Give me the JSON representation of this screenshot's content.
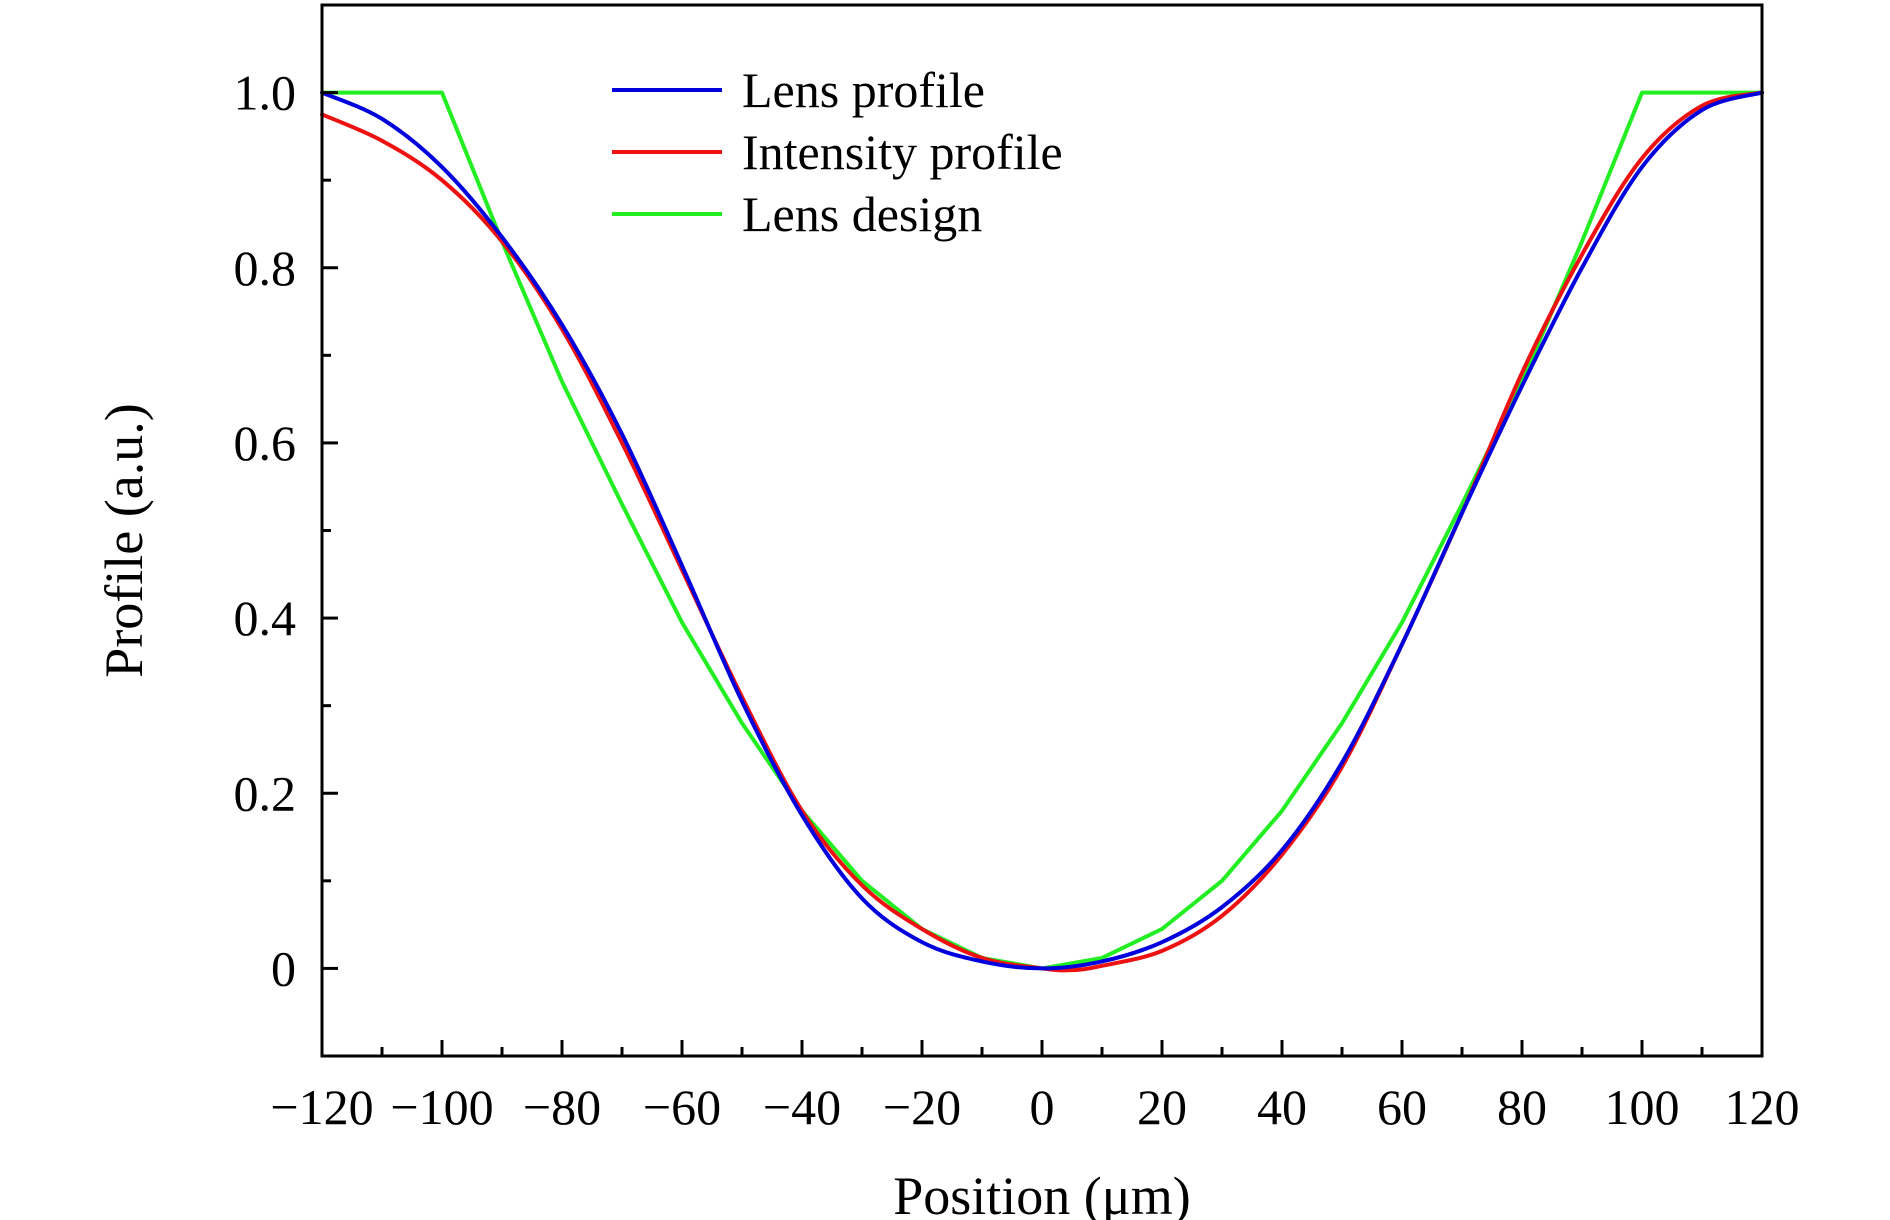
{
  "chart_data": {
    "type": "line",
    "title": "",
    "xlabel": "Position (μm)",
    "ylabel": "Profile (a.u.)",
    "xlim": [
      -120,
      120
    ],
    "ylim": [
      -0.1,
      1.1
    ],
    "x_ticks": [
      -120,
      -100,
      -80,
      -60,
      -40,
      -20,
      0,
      20,
      40,
      60,
      80,
      100,
      120
    ],
    "x_tick_labels": [
      "−120",
      "−100",
      "−80",
      "−60",
      "−40",
      "−20",
      "0",
      "20",
      "40",
      "60",
      "80",
      "100",
      "120"
    ],
    "y_ticks": [
      0,
      0.2,
      0.4,
      0.6,
      0.8,
      1.0
    ],
    "y_tick_labels": [
      "0",
      "0.2",
      "0.4",
      "0.6",
      "0.8",
      "1.0"
    ],
    "grid": false,
    "legend_position": "top-center",
    "series": [
      {
        "name": "Lens profile",
        "color": "#0000dd",
        "x": [
          -120,
          -110,
          -100,
          -90,
          -80,
          -70,
          -60,
          -50,
          -40,
          -30,
          -20,
          -10,
          0,
          10,
          20,
          30,
          40,
          50,
          60,
          70,
          80,
          90,
          100,
          110,
          120
        ],
        "y": [
          1.0,
          0.97,
          0.915,
          0.835,
          0.735,
          0.61,
          0.46,
          0.305,
          0.175,
          0.08,
          0.03,
          0.008,
          0.0,
          0.008,
          0.03,
          0.07,
          0.135,
          0.235,
          0.37,
          0.52,
          0.665,
          0.8,
          0.915,
          0.98,
          1.0
        ]
      },
      {
        "name": "Intensity profile",
        "color": "#ee1111",
        "x": [
          -120,
          -110,
          -100,
          -90,
          -80,
          -70,
          -60,
          -50,
          -40,
          -30,
          -20,
          -10,
          0,
          5,
          10,
          20,
          30,
          40,
          50,
          60,
          70,
          80,
          90,
          100,
          110,
          120
        ],
        "y": [
          0.975,
          0.945,
          0.9,
          0.83,
          0.73,
          0.6,
          0.455,
          0.31,
          0.18,
          0.095,
          0.045,
          0.012,
          0.0,
          -0.002,
          0.003,
          0.02,
          0.06,
          0.13,
          0.23,
          0.37,
          0.52,
          0.68,
          0.815,
          0.925,
          0.985,
          1.0
        ]
      },
      {
        "name": "Lens design",
        "color": "#22ee22",
        "x": [
          -120,
          -100,
          -90,
          -80,
          -70,
          -60,
          -50,
          -40,
          -30,
          -20,
          -10,
          0,
          10,
          20,
          30,
          40,
          50,
          60,
          70,
          80,
          90,
          100,
          120
        ],
        "y": [
          1.0,
          1.0,
          0.83,
          0.67,
          0.53,
          0.395,
          0.28,
          0.18,
          0.1,
          0.045,
          0.012,
          0.0,
          0.012,
          0.045,
          0.1,
          0.18,
          0.28,
          0.395,
          0.53,
          0.67,
          0.83,
          1.0,
          1.0
        ]
      }
    ]
  }
}
